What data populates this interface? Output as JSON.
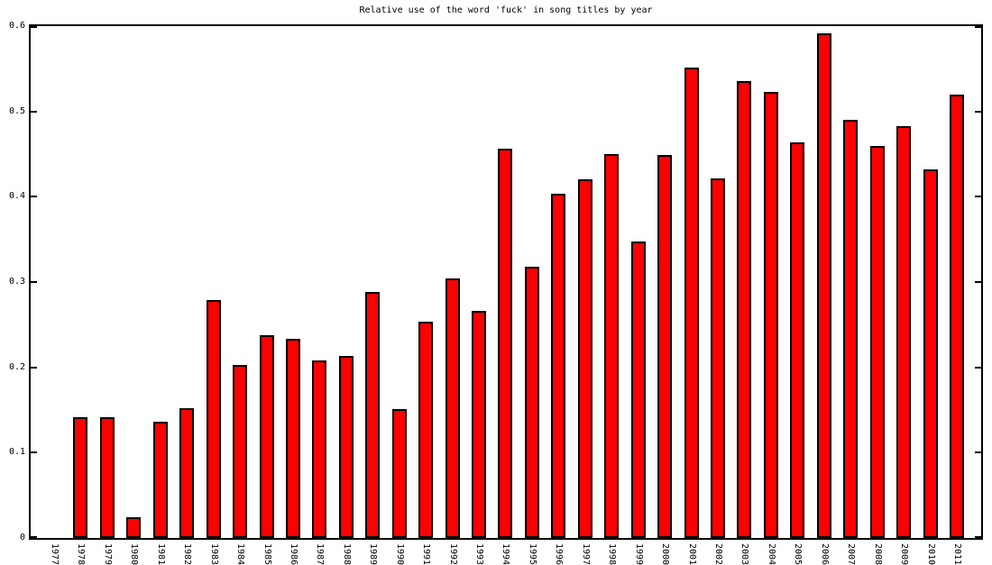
{
  "chart_data": {
    "type": "bar",
    "title": "Relative use of the word 'fuck' in song titles by year",
    "xlabel": "",
    "ylabel": "",
    "categories": [
      "1977",
      "1978",
      "1979",
      "1980",
      "1981",
      "1982",
      "1983",
      "1984",
      "1985",
      "1986",
      "1987",
      "1988",
      "1989",
      "1990",
      "1991",
      "1992",
      "1993",
      "1994",
      "1995",
      "1996",
      "1997",
      "1998",
      "1999",
      "2000",
      "2001",
      "2002",
      "2003",
      "2004",
      "2005",
      "2006",
      "2007",
      "2008",
      "2009",
      "2010",
      "2011"
    ],
    "values": [
      0,
      0.142,
      0.142,
      0.024,
      0.136,
      0.152,
      0.279,
      0.203,
      0.238,
      0.233,
      0.208,
      0.213,
      0.288,
      0.151,
      0.254,
      0.304,
      0.266,
      0.456,
      0.318,
      0.404,
      0.42,
      0.45,
      0.348,
      0.449,
      0.551,
      0.421,
      0.536,
      0.523,
      0.464,
      0.592,
      0.49,
      0.46,
      0.483,
      0.432,
      0.52
    ],
    "ylim": [
      0,
      0.6
    ],
    "ytick_labels": [
      "0",
      "0.1",
      "0.2",
      "0.3",
      "0.4",
      "0.5",
      "0.6"
    ],
    "grid": false,
    "legend": null,
    "colors": {
      "bar_fill": "#ff0000",
      "bar_border": "#000000",
      "axis": "#000000",
      "background": "#ffffff"
    }
  }
}
